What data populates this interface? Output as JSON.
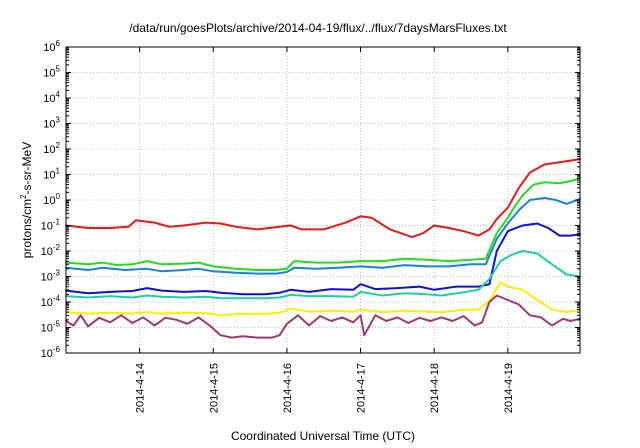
{
  "chart_data": {
    "type": "line",
    "title": "/data/run/goesPlots/archive/2014-04-19/flux/../flux/7daysMarsFluxes.txt",
    "xlabel": "Coordinated Universal Time (UTC)",
    "ylabel": {
      "prefix": "protons/cm",
      "superscript": "2",
      "suffix": "-s-sr-MeV"
    },
    "x_unit": "days since 2014-04-13 00:00 UTC",
    "xlim": [
      0.0,
      6.98
    ],
    "ylim": [
      1e-06,
      1000000.0
    ],
    "y_scale": "log",
    "x_ticks": [
      {
        "x": 1,
        "label": "2014-4-14"
      },
      {
        "x": 2,
        "label": "2014-4-15"
      },
      {
        "x": 3,
        "label": "2014-4-16"
      },
      {
        "x": 4,
        "label": "2014-4-17"
      },
      {
        "x": 5,
        "label": "2014-4-18"
      },
      {
        "x": 6,
        "label": "2014-4-19"
      }
    ],
    "y_ticks": [
      {
        "exp": 6,
        "base": "10",
        "sup": "6"
      },
      {
        "exp": 5,
        "base": "10",
        "sup": "5"
      },
      {
        "exp": 4,
        "base": "10",
        "sup": "4"
      },
      {
        "exp": 3,
        "base": "10",
        "sup": "3"
      },
      {
        "exp": 2,
        "base": "10",
        "sup": "2"
      },
      {
        "exp": 1,
        "base": "10",
        "sup": "1"
      },
      {
        "exp": 0,
        "base": "10",
        "sup": "0"
      },
      {
        "exp": -1,
        "base": "10",
        "sup": "-1"
      },
      {
        "exp": -2,
        "base": "10",
        "sup": "-2"
      },
      {
        "exp": -3,
        "base": "10",
        "sup": "-3"
      },
      {
        "exp": -4,
        "base": "10",
        "sup": "-4"
      },
      {
        "exp": -5,
        "base": "10",
        "sup": "-5"
      },
      {
        "exp": -6,
        "base": "10",
        "sup": "-6"
      }
    ],
    "grid": true,
    "legend": "none",
    "series": [
      {
        "color": "#e41a1c",
        "points": [
          [
            0,
            0.1
          ],
          [
            0.3,
            0.08
          ],
          [
            0.6,
            0.08
          ],
          [
            0.85,
            0.09
          ],
          [
            0.95,
            0.16
          ],
          [
            1.2,
            0.13
          ],
          [
            1.4,
            0.09
          ],
          [
            1.6,
            0.1
          ],
          [
            1.9,
            0.13
          ],
          [
            2.1,
            0.12
          ],
          [
            2.3,
            0.09
          ],
          [
            2.6,
            0.07
          ],
          [
            2.9,
            0.09
          ],
          [
            3.05,
            0.1
          ],
          [
            3.2,
            0.07
          ],
          [
            3.5,
            0.07
          ],
          [
            3.8,
            0.13
          ],
          [
            4.0,
            0.23
          ],
          [
            4.15,
            0.2
          ],
          [
            4.4,
            0.07
          ],
          [
            4.7,
            0.035
          ],
          [
            4.85,
            0.05
          ],
          [
            5.0,
            0.1
          ],
          [
            5.2,
            0.08
          ],
          [
            5.4,
            0.06
          ],
          [
            5.6,
            0.04
          ],
          [
            5.75,
            0.07
          ],
          [
            5.85,
            0.18
          ],
          [
            6.0,
            0.5
          ],
          [
            6.15,
            3
          ],
          [
            6.3,
            12
          ],
          [
            6.5,
            25
          ],
          [
            6.7,
            30
          ],
          [
            6.85,
            35
          ],
          [
            6.98,
            40
          ]
        ]
      },
      {
        "color": "#22dd22",
        "points": [
          [
            0,
            0.0035
          ],
          [
            0.3,
            0.003
          ],
          [
            0.5,
            0.0035
          ],
          [
            0.7,
            0.0028
          ],
          [
            0.9,
            0.003
          ],
          [
            1.1,
            0.004
          ],
          [
            1.3,
            0.003
          ],
          [
            1.6,
            0.0032
          ],
          [
            1.8,
            0.0035
          ],
          [
            2.0,
            0.0025
          ],
          [
            2.3,
            0.002
          ],
          [
            2.6,
            0.0018
          ],
          [
            2.85,
            0.0018
          ],
          [
            3.0,
            0.002
          ],
          [
            3.1,
            0.004
          ],
          [
            3.4,
            0.0035
          ],
          [
            3.7,
            0.0035
          ],
          [
            4.0,
            0.004
          ],
          [
            4.3,
            0.004
          ],
          [
            4.6,
            0.005
          ],
          [
            4.9,
            0.0045
          ],
          [
            5.2,
            0.004
          ],
          [
            5.5,
            0.0045
          ],
          [
            5.7,
            0.005
          ],
          [
            5.85,
            0.05
          ],
          [
            6.0,
            0.2
          ],
          [
            6.1,
            0.6
          ],
          [
            6.2,
            1.5
          ],
          [
            6.35,
            4
          ],
          [
            6.5,
            5
          ],
          [
            6.7,
            4.5
          ],
          [
            6.85,
            5.5
          ],
          [
            6.98,
            7
          ]
        ]
      },
      {
        "color": "#1e7fe0",
        "points": [
          [
            0,
            0.0022
          ],
          [
            0.3,
            0.0018
          ],
          [
            0.5,
            0.0022
          ],
          [
            0.8,
            0.0018
          ],
          [
            1.1,
            0.002
          ],
          [
            1.3,
            0.0016
          ],
          [
            1.6,
            0.0018
          ],
          [
            1.8,
            0.002
          ],
          [
            2.0,
            0.0016
          ],
          [
            2.3,
            0.0014
          ],
          [
            2.6,
            0.0013
          ],
          [
            2.85,
            0.0013
          ],
          [
            3.0,
            0.0015
          ],
          [
            3.1,
            0.0022
          ],
          [
            3.4,
            0.002
          ],
          [
            3.7,
            0.0022
          ],
          [
            4.0,
            0.0025
          ],
          [
            4.3,
            0.0022
          ],
          [
            4.6,
            0.0028
          ],
          [
            4.9,
            0.0025
          ],
          [
            5.2,
            0.0025
          ],
          [
            5.5,
            0.003
          ],
          [
            5.7,
            0.003
          ],
          [
            5.85,
            0.03
          ],
          [
            6.0,
            0.12
          ],
          [
            6.15,
            0.4
          ],
          [
            6.3,
            1.0
          ],
          [
            6.5,
            1.2
          ],
          [
            6.65,
            1.0
          ],
          [
            6.8,
            0.7
          ],
          [
            6.98,
            1.1
          ]
        ]
      },
      {
        "color": "#1010d0",
        "points": [
          [
            0,
            0.00028
          ],
          [
            0.3,
            0.00022
          ],
          [
            0.6,
            0.00025
          ],
          [
            0.9,
            0.00027
          ],
          [
            1.1,
            0.00035
          ],
          [
            1.3,
            0.00028
          ],
          [
            1.6,
            0.00025
          ],
          [
            1.9,
            0.00027
          ],
          [
            2.1,
            0.00023
          ],
          [
            2.4,
            0.0002
          ],
          [
            2.7,
            0.0002
          ],
          [
            2.9,
            0.00023
          ],
          [
            3.05,
            0.0003
          ],
          [
            3.3,
            0.00025
          ],
          [
            3.6,
            0.00032
          ],
          [
            3.9,
            0.0003
          ],
          [
            4.0,
            0.0005
          ],
          [
            4.2,
            0.00032
          ],
          [
            4.5,
            0.00035
          ],
          [
            4.8,
            0.0004
          ],
          [
            5.0,
            0.0003
          ],
          [
            5.3,
            0.0004
          ],
          [
            5.6,
            0.0004
          ],
          [
            5.75,
            0.0005
          ],
          [
            5.85,
            0.01
          ],
          [
            6.0,
            0.06
          ],
          [
            6.2,
            0.1
          ],
          [
            6.4,
            0.12
          ],
          [
            6.55,
            0.08
          ],
          [
            6.7,
            0.04
          ],
          [
            6.85,
            0.04
          ],
          [
            6.98,
            0.045
          ]
        ]
      },
      {
        "color": "#1fcfa0",
        "points": [
          [
            0,
            0.00017
          ],
          [
            0.3,
            0.00015
          ],
          [
            0.6,
            0.00017
          ],
          [
            0.9,
            0.00015
          ],
          [
            1.1,
            0.00018
          ],
          [
            1.3,
            0.00016
          ],
          [
            1.6,
            0.00015
          ],
          [
            1.9,
            0.00016
          ],
          [
            2.1,
            0.00014
          ],
          [
            2.4,
            0.00014
          ],
          [
            2.7,
            0.00014
          ],
          [
            2.9,
            0.00015
          ],
          [
            3.05,
            0.00019
          ],
          [
            3.3,
            0.00017
          ],
          [
            3.6,
            0.00017
          ],
          [
            3.9,
            0.00016
          ],
          [
            4.0,
            0.00025
          ],
          [
            4.3,
            0.00018
          ],
          [
            4.6,
            0.00022
          ],
          [
            4.9,
            0.0002
          ],
          [
            5.1,
            0.00018
          ],
          [
            5.4,
            0.00024
          ],
          [
            5.6,
            0.0003
          ],
          [
            5.75,
            0.0008
          ],
          [
            5.9,
            0.004
          ],
          [
            6.05,
            0.007
          ],
          [
            6.2,
            0.01
          ],
          [
            6.4,
            0.008
          ],
          [
            6.6,
            0.003
          ],
          [
            6.8,
            0.0012
          ],
          [
            6.98,
            0.001
          ]
        ]
      },
      {
        "color": "#ffee00",
        "points": [
          [
            0,
            4e-05
          ],
          [
            0.3,
            3.5e-05
          ],
          [
            0.6,
            3.8e-05
          ],
          [
            0.9,
            3.5e-05
          ],
          [
            1.1,
            4e-05
          ],
          [
            1.3,
            3.5e-05
          ],
          [
            1.6,
            3.8e-05
          ],
          [
            1.9,
            3.6e-05
          ],
          [
            2.1,
            3e-05
          ],
          [
            2.4,
            3.4e-05
          ],
          [
            2.7,
            3.4e-05
          ],
          [
            2.9,
            3.8e-05
          ],
          [
            3.05,
            5.5e-05
          ],
          [
            3.3,
            4.2e-05
          ],
          [
            3.6,
            4.5e-05
          ],
          [
            3.9,
            4.2e-05
          ],
          [
            4.0,
            5e-05
          ],
          [
            4.3,
            4e-05
          ],
          [
            4.6,
            4.5e-05
          ],
          [
            4.9,
            4.2e-05
          ],
          [
            5.1,
            4e-05
          ],
          [
            5.4,
            5e-05
          ],
          [
            5.6,
            5e-05
          ],
          [
            5.75,
            0.00011
          ],
          [
            5.9,
            0.0006
          ],
          [
            6.0,
            0.0004
          ],
          [
            6.2,
            0.0003
          ],
          [
            6.4,
            0.00012
          ],
          [
            6.6,
            5e-05
          ],
          [
            6.8,
            4e-05
          ],
          [
            6.98,
            5e-05
          ]
        ]
      },
      {
        "color": "#9b3a6e",
        "points": [
          [
            0,
            1.8e-05
          ],
          [
            0.1,
            1.2e-05
          ],
          [
            0.2,
            3e-05
          ],
          [
            0.3,
            1.1e-05
          ],
          [
            0.45,
            2.4e-05
          ],
          [
            0.6,
            1.6e-05
          ],
          [
            0.75,
            3e-05
          ],
          [
            0.9,
            1.5e-05
          ],
          [
            1.05,
            2.5e-05
          ],
          [
            1.2,
            1.2e-05
          ],
          [
            1.35,
            2.4e-05
          ],
          [
            1.5,
            2e-05
          ],
          [
            1.65,
            1.4e-05
          ],
          [
            1.8,
            2.5e-05
          ],
          [
            1.95,
            1.2e-05
          ],
          [
            2.1,
            5e-06
          ],
          [
            2.25,
            4e-06
          ],
          [
            2.4,
            4.5e-06
          ],
          [
            2.6,
            4e-06
          ],
          [
            2.8,
            4e-06
          ],
          [
            2.9,
            5e-06
          ],
          [
            3.0,
            1.4e-05
          ],
          [
            3.15,
            3e-05
          ],
          [
            3.3,
            1.2e-05
          ],
          [
            3.45,
            2.8e-05
          ],
          [
            3.6,
            1.8e-05
          ],
          [
            3.75,
            2.5e-05
          ],
          [
            3.9,
            1.6e-05
          ],
          [
            4.0,
            3e-05
          ],
          [
            4.05,
            5e-06
          ],
          [
            4.2,
            3e-05
          ],
          [
            4.35,
            1.8e-05
          ],
          [
            4.5,
            2.5e-05
          ],
          [
            4.65,
            1.5e-05
          ],
          [
            4.8,
            2.4e-05
          ],
          [
            4.95,
            1.8e-05
          ],
          [
            5.1,
            2.5e-05
          ],
          [
            5.25,
            1.8e-05
          ],
          [
            5.4,
            2.8e-05
          ],
          [
            5.55,
            1.2e-05
          ],
          [
            5.65,
            1.6e-05
          ],
          [
            5.75,
            0.0001
          ],
          [
            5.85,
            0.00018
          ],
          [
            6.0,
            0.00012
          ],
          [
            6.15,
            8e-05
          ],
          [
            6.3,
            3e-05
          ],
          [
            6.45,
            2.5e-05
          ],
          [
            6.6,
            1.2e-05
          ],
          [
            6.75,
            2.2e-05
          ],
          [
            6.85,
            1.8e-05
          ],
          [
            6.98,
            2.2e-05
          ]
        ]
      }
    ]
  }
}
